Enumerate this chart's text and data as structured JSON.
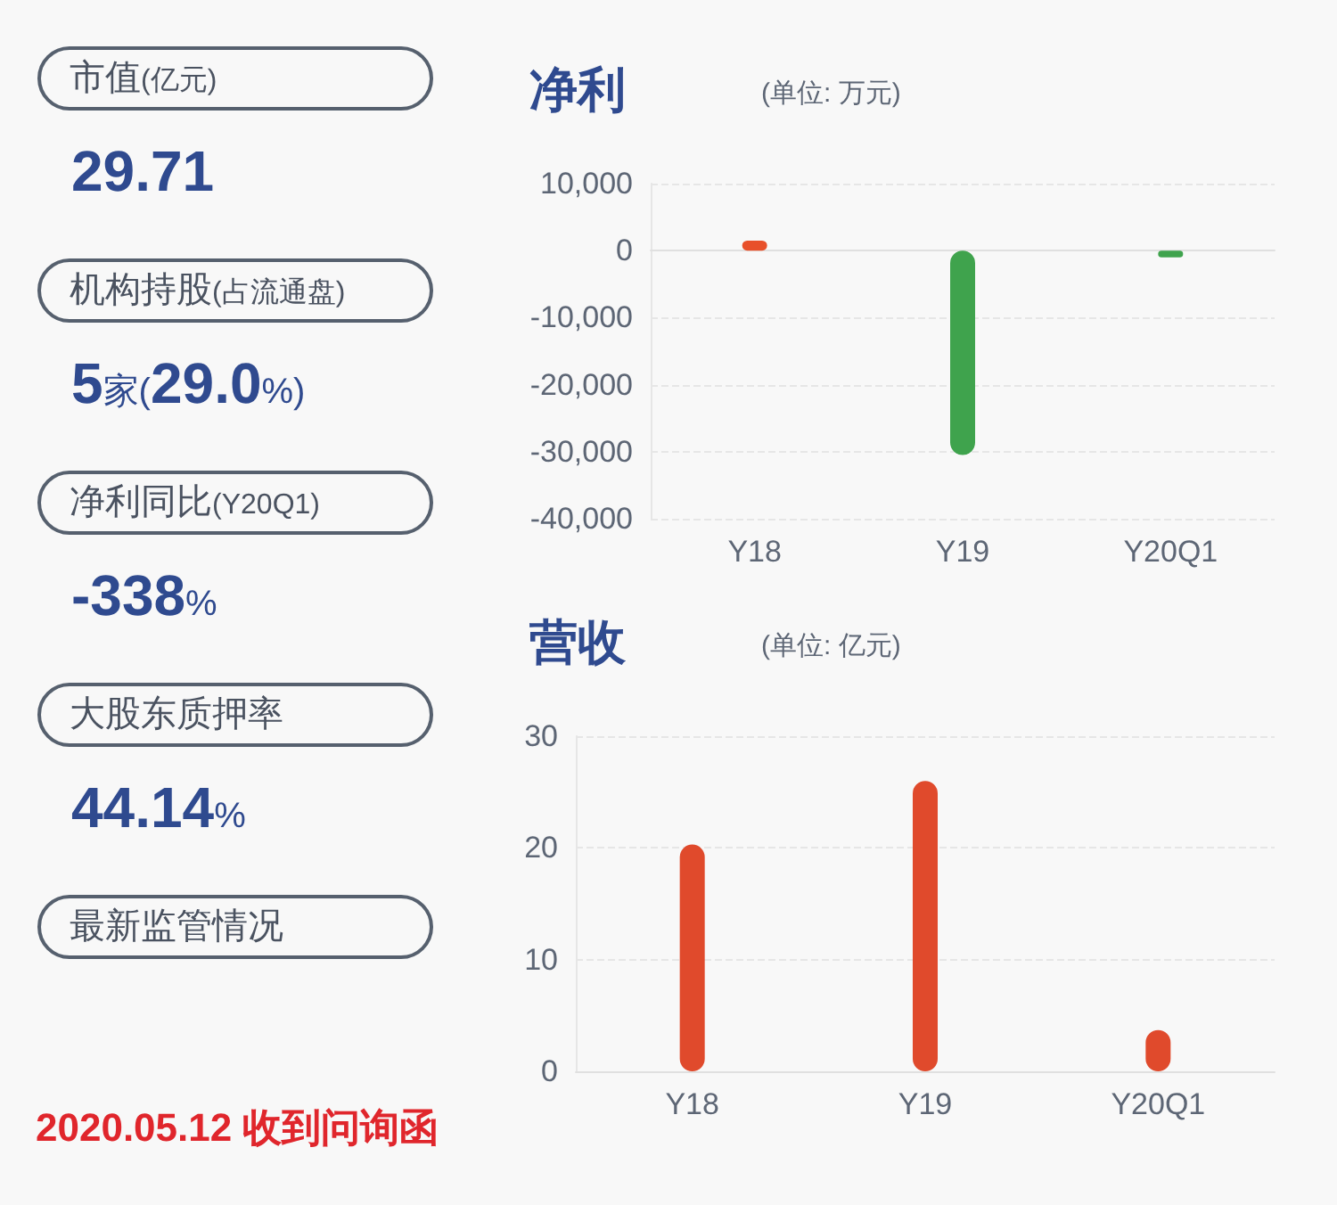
{
  "chart_data": [
    {
      "type": "other",
      "categories": [
        "市值(亿元)",
        "机构持股(占流通盘)",
        "净利同比(Y20Q1)",
        "大股东质押率",
        "最新监管情况"
      ],
      "value_labels": [
        "29.71",
        "5家(29.0%)",
        "-338%",
        "44.14%",
        null
      ],
      "annotations": [
        "2020.05.12 收到问询函"
      ]
    },
    {
      "type": "bar",
      "title": "净利",
      "subtitle": "(单位: 万元)",
      "categories": [
        "Y18",
        "Y19",
        "Y20Q1"
      ],
      "values": [
        1500,
        -30500,
        -1000
      ],
      "colors": [
        "#e8502a",
        "#3fa34d",
        "#3fa34d"
      ],
      "ylim": [
        -40000,
        10000
      ],
      "yticks": [
        {
          "value": -40000,
          "label": "-40,000"
        },
        {
          "value": -30000,
          "label": "-30,000"
        },
        {
          "value": -20000,
          "label": "-20,000"
        },
        {
          "value": -10000,
          "label": "-10,000"
        },
        0,
        {
          "value": 10000,
          "label": "10,000"
        }
      ],
      "grid": "y"
    },
    {
      "type": "bar",
      "title": "营收",
      "subtitle": "(单位: 亿元)",
      "categories": [
        "Y18",
        "Y19",
        "Y20Q1"
      ],
      "values": [
        20.3,
        26,
        3.7
      ],
      "color": "#e04a2c",
      "ylim": [
        0,
        30
      ],
      "yticks": [
        0,
        10,
        20,
        30
      ],
      "grid": "y"
    }
  ]
}
